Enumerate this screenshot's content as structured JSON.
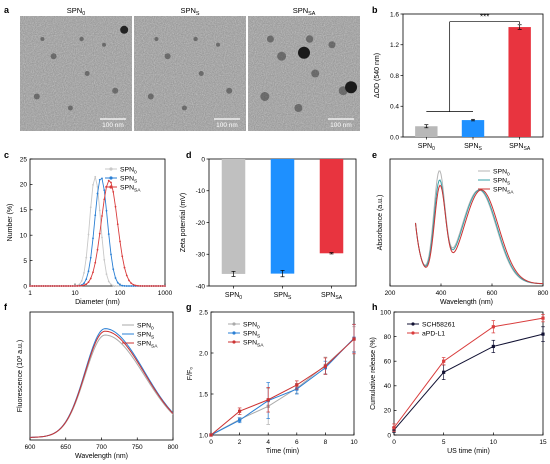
{
  "figure": {
    "panel_letters": [
      "a",
      "b",
      "c",
      "d",
      "e",
      "f",
      "g",
      "h"
    ],
    "tem": {
      "panels": [
        {
          "label": "SPN",
          "sub": "0",
          "scale_bar": "100 nm"
        },
        {
          "label": "SPN",
          "sub": "S",
          "scale_bar": "100 nm"
        },
        {
          "label": "SPN",
          "sub": "SA",
          "scale_bar": "100 nm"
        }
      ]
    }
  },
  "chart_data": [
    {
      "panel": "b",
      "type": "bar",
      "ylabel": "ΔOD (540 nm)",
      "ylim": [
        0,
        1.6
      ],
      "yticks": [
        "0.0",
        "0.4",
        "0.8",
        "1.2",
        "1.6"
      ],
      "categories": [
        {
          "label": "SPN",
          "sub": "0"
        },
        {
          "label": "SPN",
          "sub": "S"
        },
        {
          "label": "SPN",
          "sub": "SA"
        }
      ],
      "values": [
        0.14,
        0.22,
        1.43
      ],
      "errors": [
        0.02,
        0.01,
        0.03
      ],
      "colors": [
        "#b8b8b8",
        "#1e90ff",
        "#e8343f"
      ],
      "annotation": "***"
    },
    {
      "panel": "c",
      "type": "line",
      "ylabel": "Number (%)",
      "xlabel": "Diameter (nm)",
      "xscale": "log",
      "xlim": [
        1,
        1000
      ],
      "ylim": [
        0,
        25
      ],
      "xticks": [
        "1",
        "10",
        "100",
        "1000"
      ],
      "yticks": [
        "0",
        "5",
        "10",
        "15",
        "20",
        "25"
      ],
      "legend_position": "top-right",
      "series": [
        {
          "name": "SPN",
          "sub": "0",
          "color": "#c8c8c8",
          "peak_x": 28,
          "peak_y": 21.5,
          "sigma": 0.12
        },
        {
          "name": "SPN",
          "sub": "S",
          "color": "#2a7fd4",
          "peak_x": 38,
          "peak_y": 21.4,
          "sigma": 0.14
        },
        {
          "name": "SPN",
          "sub": "SA",
          "color": "#d93c3c",
          "peak_x": 58,
          "peak_y": 20.8,
          "sigma": 0.18
        }
      ]
    },
    {
      "panel": "d",
      "type": "bar",
      "ylabel": "Zeta potential (mV)",
      "ylim": [
        -40,
        0
      ],
      "yticks": [
        "-40",
        "-30",
        "-20",
        "-10",
        "0"
      ],
      "categories": [
        {
          "label": "SPN",
          "sub": "0"
        },
        {
          "label": "SPN",
          "sub": "S"
        },
        {
          "label": "SPN",
          "sub": "SA"
        }
      ],
      "values": [
        -36.2,
        -36.1,
        -29.7
      ],
      "errors": [
        0.8,
        1.0,
        0.2
      ],
      "colors": [
        "#c0c0c0",
        "#1e90ff",
        "#e8343f"
      ]
    },
    {
      "panel": "e",
      "type": "line",
      "ylabel": "Absorbance (a.u.)",
      "xlabel": "Wavelength (nm)",
      "xlim": [
        200,
        800
      ],
      "xticks": [
        "200",
        "400",
        "600",
        "800"
      ],
      "legend_position": "top-right",
      "series": [
        {
          "name": "SPN",
          "sub": "0",
          "color": "#b5b5b5",
          "peak1": 0.95,
          "peak2": 0.85,
          "shift": -6
        },
        {
          "name": "SPN",
          "sub": "S",
          "color": "#3aa0a8",
          "peak1": 0.87,
          "peak2": 0.85,
          "shift": -3
        },
        {
          "name": "SPN",
          "sub": "SA",
          "color": "#cc3333",
          "peak1": 0.83,
          "peak2": 0.85,
          "shift": 3
        }
      ]
    },
    {
      "panel": "f",
      "type": "line",
      "ylabel": "Fluorescence (10³ a.u.)",
      "xlabel": "Wavelength (nm)",
      "xlim": [
        600,
        800
      ],
      "xticks": [
        "600",
        "650",
        "700",
        "750",
        "800"
      ],
      "legend_position": "top-right",
      "series": [
        {
          "name": "SPN",
          "sub": "0",
          "color": "#aaaaaa",
          "peak": 0.8
        },
        {
          "name": "SPN",
          "sub": "S",
          "color": "#2a7fd4",
          "peak": 0.85
        },
        {
          "name": "SPN",
          "sub": "SA",
          "color": "#cc3333",
          "peak": 0.83
        }
      ]
    },
    {
      "panel": "g",
      "type": "line",
      "ylabel": "F/F₀",
      "xlabel": "Time (min)",
      "xlim": [
        0,
        10
      ],
      "ylim": [
        1.0,
        2.5
      ],
      "xticks": [
        "0",
        "2",
        "4",
        "6",
        "8",
        "10"
      ],
      "yticks": [
        "1.0",
        "1.5",
        "2.0",
        "2.5"
      ],
      "legend_position": "top-left",
      "x": [
        0,
        2,
        4,
        6,
        8,
        10
      ],
      "series": [
        {
          "name": "SPN",
          "sub": "0",
          "color": "#aaaaaa",
          "values": [
            1.0,
            1.19,
            1.35,
            1.57,
            1.85,
            2.17
          ],
          "errors": [
            0,
            0.02,
            0.22,
            0.06,
            0.1,
            0.15
          ]
        },
        {
          "name": "SPN",
          "sub": "S",
          "color": "#2a7fd4",
          "values": [
            1.0,
            1.18,
            1.42,
            1.56,
            1.82,
            2.18
          ],
          "errors": [
            0,
            0.03,
            0.22,
            0.06,
            0.08,
            0.17
          ]
        },
        {
          "name": "SPN",
          "sub": "SA",
          "color": "#cc3333",
          "values": [
            1.0,
            1.29,
            1.43,
            1.61,
            1.84,
            2.17
          ],
          "errors": [
            0,
            0.04,
            0.15,
            0.05,
            0.1,
            0.18
          ]
        }
      ]
    },
    {
      "panel": "h",
      "type": "line",
      "ylabel": "Cumulative release (%)",
      "xlabel": "US time (min)",
      "xlim": [
        0,
        15
      ],
      "ylim": [
        0,
        100
      ],
      "xticks": [
        "0",
        "5",
        "10",
        "15"
      ],
      "yticks": [
        "0",
        "20",
        "40",
        "60",
        "80",
        "100"
      ],
      "legend_position": "top-left",
      "x": [
        0,
        5,
        10,
        15
      ],
      "series": [
        {
          "name": "SCH58261",
          "color": "#111133",
          "values": [
            4,
            51,
            72,
            82
          ],
          "errors": [
            2,
            6,
            5,
            6
          ]
        },
        {
          "name": "aPD-L1",
          "color": "#d93c3c",
          "values": [
            6,
            60,
            88,
            95
          ],
          "errors": [
            3,
            3,
            5,
            3
          ]
        }
      ]
    }
  ]
}
